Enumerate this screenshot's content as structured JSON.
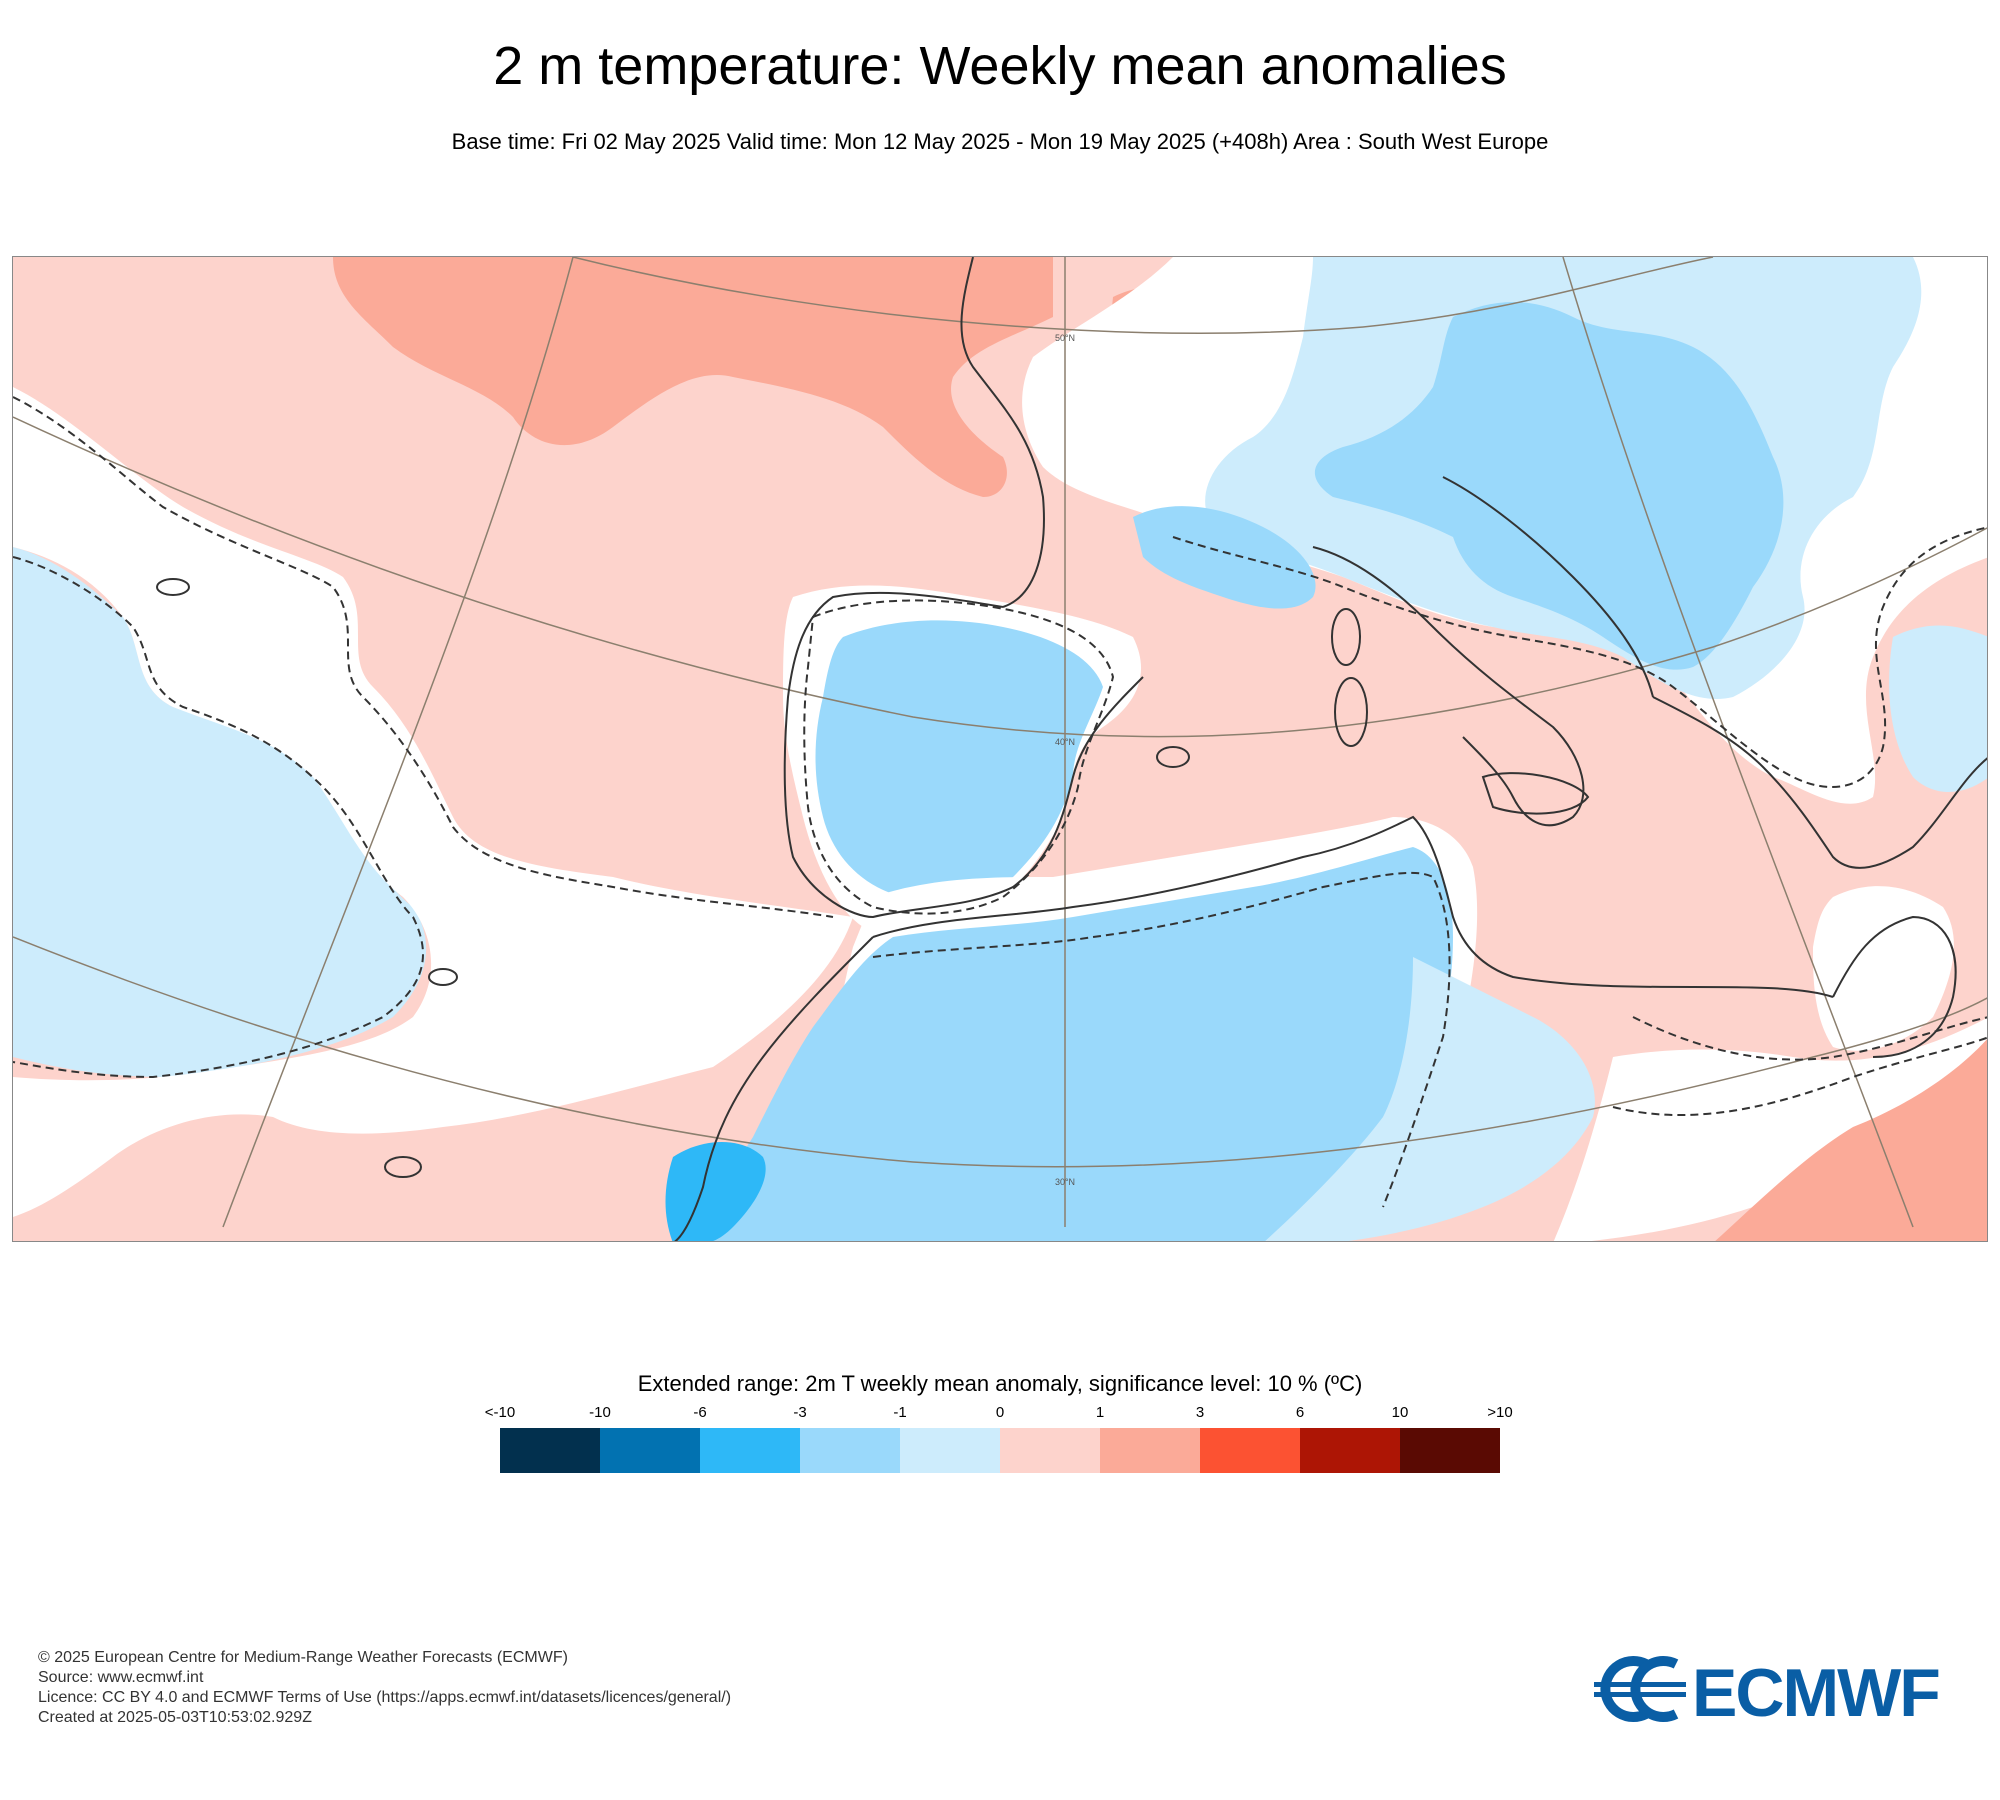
{
  "header": {
    "title": "2 m temperature: Weekly mean anomalies",
    "subtitle": "Base time: Fri 02 May 2025 Valid time: Mon 12 May 2025 - Mon 19 May 2025 (+408h) Area : South West Europe"
  },
  "map": {
    "region": "South West Europe",
    "graticule_labels": [
      "50°N",
      "40°N",
      "30°N"
    ],
    "anomaly_colors": {
      "cold_strong": "#2eb8f7",
      "cold": "#9ad9fb",
      "cool": "#cdecfc",
      "neutral": "#ffffff",
      "warm": "#fdd3cc",
      "hot": "#fbaa98"
    },
    "coast_color": "#333333",
    "graticule_color": "#8b7f6e"
  },
  "legend": {
    "title": "Extended range: 2m T weekly mean anomaly, significance level: 10 % (ºC)",
    "labels": [
      "<-10",
      "-10",
      "-6",
      "-3",
      "-1",
      "0",
      "1",
      "3",
      "6",
      "10",
      ">10"
    ],
    "colors": [
      "#02304e",
      "#0272b1",
      "#2eb8f7",
      "#9ad9fb",
      "#cdecfc",
      "#fdd3cc",
      "#fbaa98",
      "#fc5232",
      "#ad1505",
      "#5a0a03"
    ]
  },
  "credits": {
    "line1": "© 2025 European Centre for Medium-Range Weather Forecasts (ECMWF)",
    "line2": "Source: www.ecmwf.int",
    "line3": "Licence: CC BY 4.0 and ECMWF Terms of Use (https://apps.ecmwf.int/datasets/licences/general/)",
    "line4": "Created at 2025-05-03T10:53:02.929Z"
  },
  "logo": {
    "text": "ECMWF",
    "color": "#0a5ea5"
  }
}
